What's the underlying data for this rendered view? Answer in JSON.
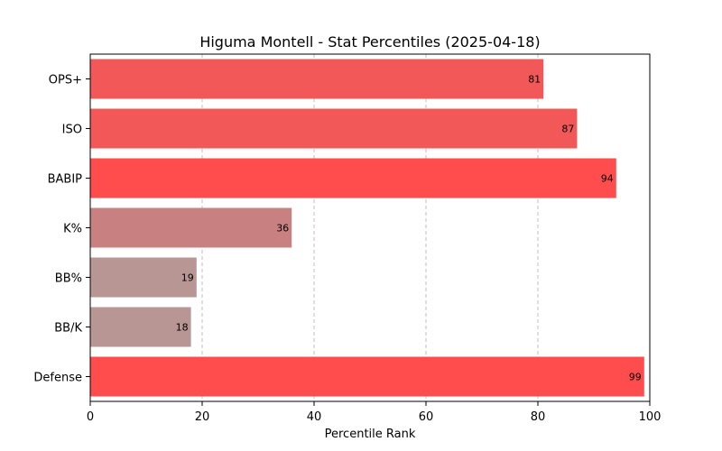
{
  "chart_data": {
    "type": "bar",
    "orientation": "horizontal",
    "title": "Higuma Montell - Stat Percentiles (2025-04-18)",
    "xlabel": "Percentile Rank",
    "ylabel": "",
    "xlim": [
      0,
      100
    ],
    "xticks": [
      0,
      20,
      40,
      60,
      80,
      100
    ],
    "grid": "x-dashed",
    "categories": [
      "OPS+",
      "ISO",
      "BABIP",
      "K%",
      "BB%",
      "BB/K",
      "Defense"
    ],
    "values": [
      81,
      87,
      94,
      36,
      19,
      18,
      99
    ],
    "colors": [
      "#f25858",
      "#f25858",
      "#ff4d4d",
      "#c98080",
      "#b89693",
      "#b89693",
      "#ff4d4d"
    ]
  }
}
